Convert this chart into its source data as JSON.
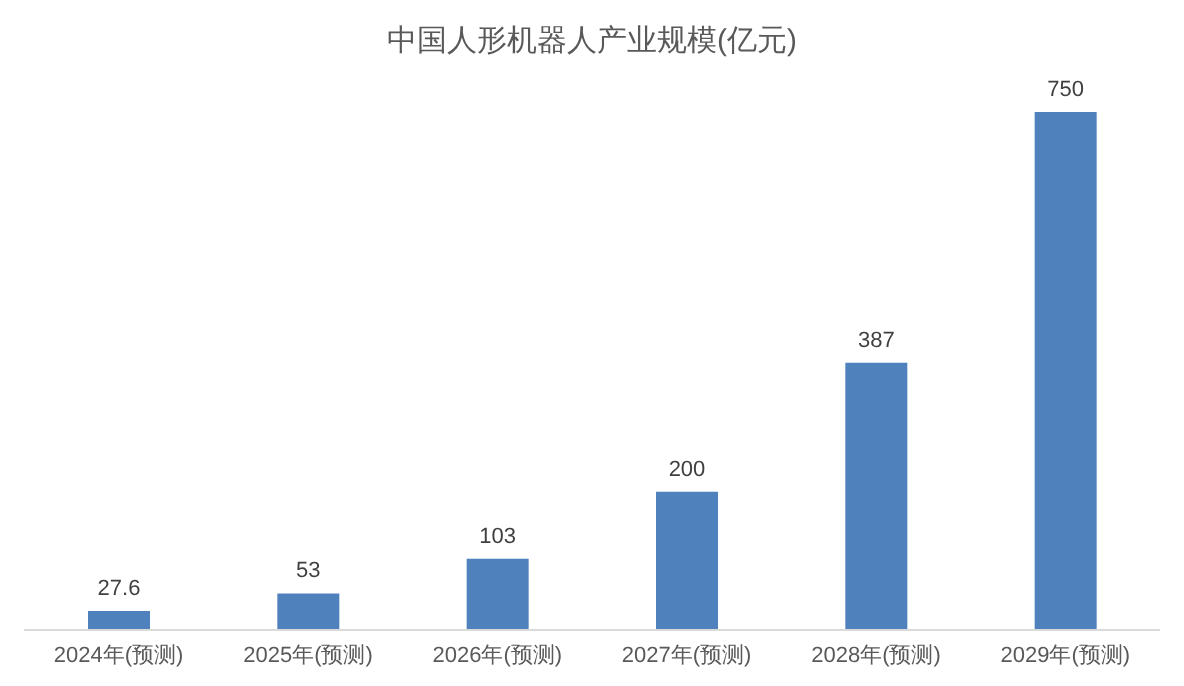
{
  "chart_data": {
    "type": "bar",
    "title": "中国人形机器人产业规模(亿元)",
    "categories": [
      "2024年(预测)",
      "2025年(预测)",
      "2026年(预测)",
      "2027年(预测)",
      "2028年(预测)",
      "2029年(预测)"
    ],
    "values": [
      27.6,
      53,
      103,
      200,
      387,
      750
    ],
    "color": "#4f81bd",
    "data_labels": true,
    "grid": false,
    "legend": false
  }
}
